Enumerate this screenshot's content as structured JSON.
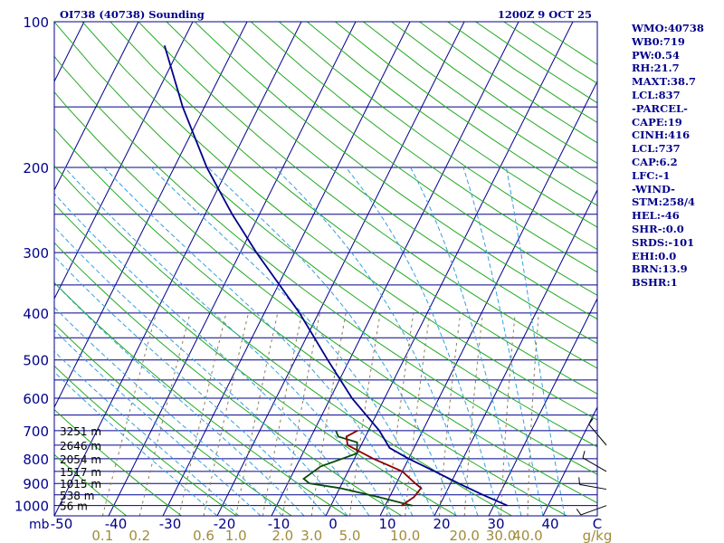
{
  "header": {
    "station_title": "OI738 (40738) Sounding",
    "valid_time": "1200Z  9 OCT 25"
  },
  "side_panel": [
    "WMO:40738",
    "WB0:719",
    "PW:0.54",
    "RH:21.7",
    "MAXT:38.7",
    "LCL:837",
    "-PARCEL-",
    "CAPE:19",
    "CINH:416",
    "LCL:737",
    "CAP:6.2",
    "LFC:-1",
    "-WIND-",
    "STM:258/4",
    "HEL:-46",
    "SHR-:0.0",
    "SRDS:-101",
    "EHI:0.0",
    "BRN:13.9",
    "BSHR:1"
  ],
  "colors": {
    "isobar": "#00008b",
    "isotherm": "#00008b",
    "dry_adiabat": "#22aa22",
    "moist_adiabat": "#33a0dd",
    "mixing_ratio": "#8b7d5a",
    "temperature": "#00008b",
    "dewpoint_lower": "#0a4a0a",
    "dewpoint_upper": "#8b0000",
    "wind": "#000000"
  },
  "chart_data": {
    "type": "line",
    "diagram": "skew-t log-p",
    "pressure_ticks": [
      "100",
      "200",
      "300",
      "400",
      "500",
      "600",
      "700",
      "800",
      "900",
      "1000"
    ],
    "pressure_unit": "mb",
    "temperature_ticks": [
      "-50",
      "-40",
      "-30",
      "-20",
      "-10",
      "0",
      "10",
      "20",
      "30",
      "40"
    ],
    "temperature_unit": "C",
    "mixing_ratio_ticks": [
      "0.1",
      "0.2",
      "0.6",
      "1.0",
      "2.0",
      "3.0",
      "5.0",
      "10.0",
      "20.0",
      "30.0",
      "40.0"
    ],
    "mixing_ratio_unit": "g/kg",
    "ylim": [
      1050,
      100
    ],
    "xlim_at_surface": [
      -50,
      50
    ],
    "height_labels": [
      {
        "p": 1000,
        "label": "56 m"
      },
      {
        "p": 950,
        "label": "538 m"
      },
      {
        "p": 900,
        "label": "1015 m"
      },
      {
        "p": 850,
        "label": "1517 m"
      },
      {
        "p": 800,
        "label": "2054 m"
      },
      {
        "p": 750,
        "label": "2646 m"
      },
      {
        "p": 700,
        "label": "3251 m"
      }
    ],
    "series": [
      {
        "role": "temperature",
        "points": [
          {
            "p": 1000,
            "t": 32.5
          },
          {
            "p": 950,
            "t": 27.0
          },
          {
            "p": 900,
            "t": 21.5
          },
          {
            "p": 850,
            "t": 16.0
          },
          {
            "p": 800,
            "t": 10.0
          },
          {
            "p": 760,
            "t": 5.5
          },
          {
            "p": 700,
            "t": 2.0
          },
          {
            "p": 600,
            "t": -6.0
          },
          {
            "p": 500,
            "t": -14.0
          },
          {
            "p": 400,
            "t": -23.5
          },
          {
            "p": 300,
            "t": -37.0
          },
          {
            "p": 250,
            "t": -45.0
          },
          {
            "p": 200,
            "t": -54.0
          },
          {
            "p": 150,
            "t": -64.0
          },
          {
            "p": 112,
            "t": -73.0
          }
        ]
      },
      {
        "role": "dewpoint-lower",
        "points": [
          {
            "p": 1000,
            "t": 15.0
          },
          {
            "p": 960,
            "t": 8.0
          },
          {
            "p": 920,
            "t": 0.0
          },
          {
            "p": 900,
            "t": -6.0
          },
          {
            "p": 880,
            "t": -7.5
          },
          {
            "p": 830,
            "t": -5.5
          },
          {
            "p": 780,
            "t": 0.0
          },
          {
            "p": 740,
            "t": -1.0
          },
          {
            "p": 720,
            "t": -5.0
          },
          {
            "p": 700,
            "t": -6.0
          }
        ]
      },
      {
        "role": "dewpoint-upper",
        "points": [
          {
            "p": 1000,
            "t": 13.0
          },
          {
            "p": 960,
            "t": 14.5
          },
          {
            "p": 920,
            "t": 15.0
          },
          {
            "p": 900,
            "t": 13.5
          },
          {
            "p": 850,
            "t": 10.0
          },
          {
            "p": 800,
            "t": 3.5
          },
          {
            "p": 750,
            "t": -2.5
          },
          {
            "p": 720,
            "t": -3.5
          },
          {
            "p": 700,
            "t": -2.0
          }
        ]
      }
    ],
    "wind_barbs": [
      {
        "p": 1000,
        "dir": 250,
        "spd": 5
      },
      {
        "p": 925,
        "dir": 280,
        "spd": 5
      },
      {
        "p": 850,
        "dir": 300,
        "spd": 5
      },
      {
        "p": 750,
        "dir": 320,
        "spd": 10
      }
    ]
  }
}
